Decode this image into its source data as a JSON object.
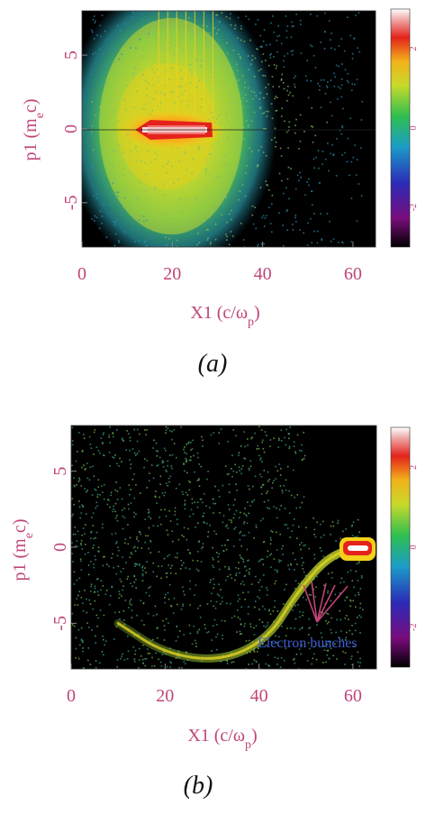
{
  "colors": {
    "axis_text": "#c0447a",
    "background_plot": "#000000",
    "annotation_text": "#3f5fd8",
    "arrow": "#c0447a"
  },
  "chart_data": [
    {
      "type": "heatmap",
      "caption": "(a)",
      "xlabel": "X1 (c/ω",
      "xlabel_sub": "p",
      "xlabel_tail": ")",
      "ylabel": "p1 (m",
      "ylabel_sub": "e",
      "ylabel_tail": "c)",
      "xlim": [
        0,
        65
      ],
      "ylim": [
        -8,
        8
      ],
      "xticks": [
        0,
        20,
        40,
        60
      ],
      "yticks": [
        -5,
        0,
        5
      ],
      "xtick_labels": [
        "0",
        "20",
        "40",
        "60"
      ],
      "ytick_labels": [
        "-5",
        "0",
        "5"
      ],
      "colorbar_ticks": [
        "2",
        "0",
        "-2"
      ],
      "colorbar_range": [
        -3,
        3
      ],
      "features": [
        {
          "kind": "core",
          "x": [
            13,
            31
          ],
          "y": 0
        },
        {
          "kind": "spread",
          "x": [
            4,
            48
          ],
          "y": [
            -8,
            8
          ]
        },
        {
          "kind": "tail",
          "x": [
            48,
            65
          ],
          "y": [
            -4,
            2
          ]
        }
      ]
    },
    {
      "type": "heatmap",
      "caption": "(b)",
      "xlabel": "X1 (c/ω",
      "xlabel_sub": "p",
      "xlabel_tail": ")",
      "ylabel": "p1 (m",
      "ylabel_sub": "e",
      "ylabel_tail": "c)",
      "xlim": [
        0,
        65
      ],
      "ylim": [
        -8,
        8
      ],
      "xticks": [
        0,
        20,
        40,
        60
      ],
      "yticks": [
        -5,
        0,
        5
      ],
      "xtick_labels": [
        "0",
        "20",
        "40",
        "60"
      ],
      "ytick_labels": [
        "-5",
        "0",
        "5"
      ],
      "colorbar_ticks": [
        "2",
        "0",
        "-2"
      ],
      "colorbar_range": [
        -3,
        3
      ],
      "annotation": "Electron bunches",
      "features": [
        {
          "kind": "core",
          "x": [
            58,
            63
          ],
          "y": 0
        },
        {
          "kind": "tail_curve",
          "points": [
            [
              62,
              0
            ],
            [
              55,
              -0.5
            ],
            [
              48,
              -3
            ],
            [
              42,
              -6
            ],
            [
              32,
              -7.5
            ],
            [
              20,
              -7
            ],
            [
              10,
              -5
            ]
          ]
        },
        {
          "kind": "diffuse",
          "x": [
            0,
            55
          ],
          "y": [
            -8,
            8
          ]
        }
      ]
    }
  ]
}
